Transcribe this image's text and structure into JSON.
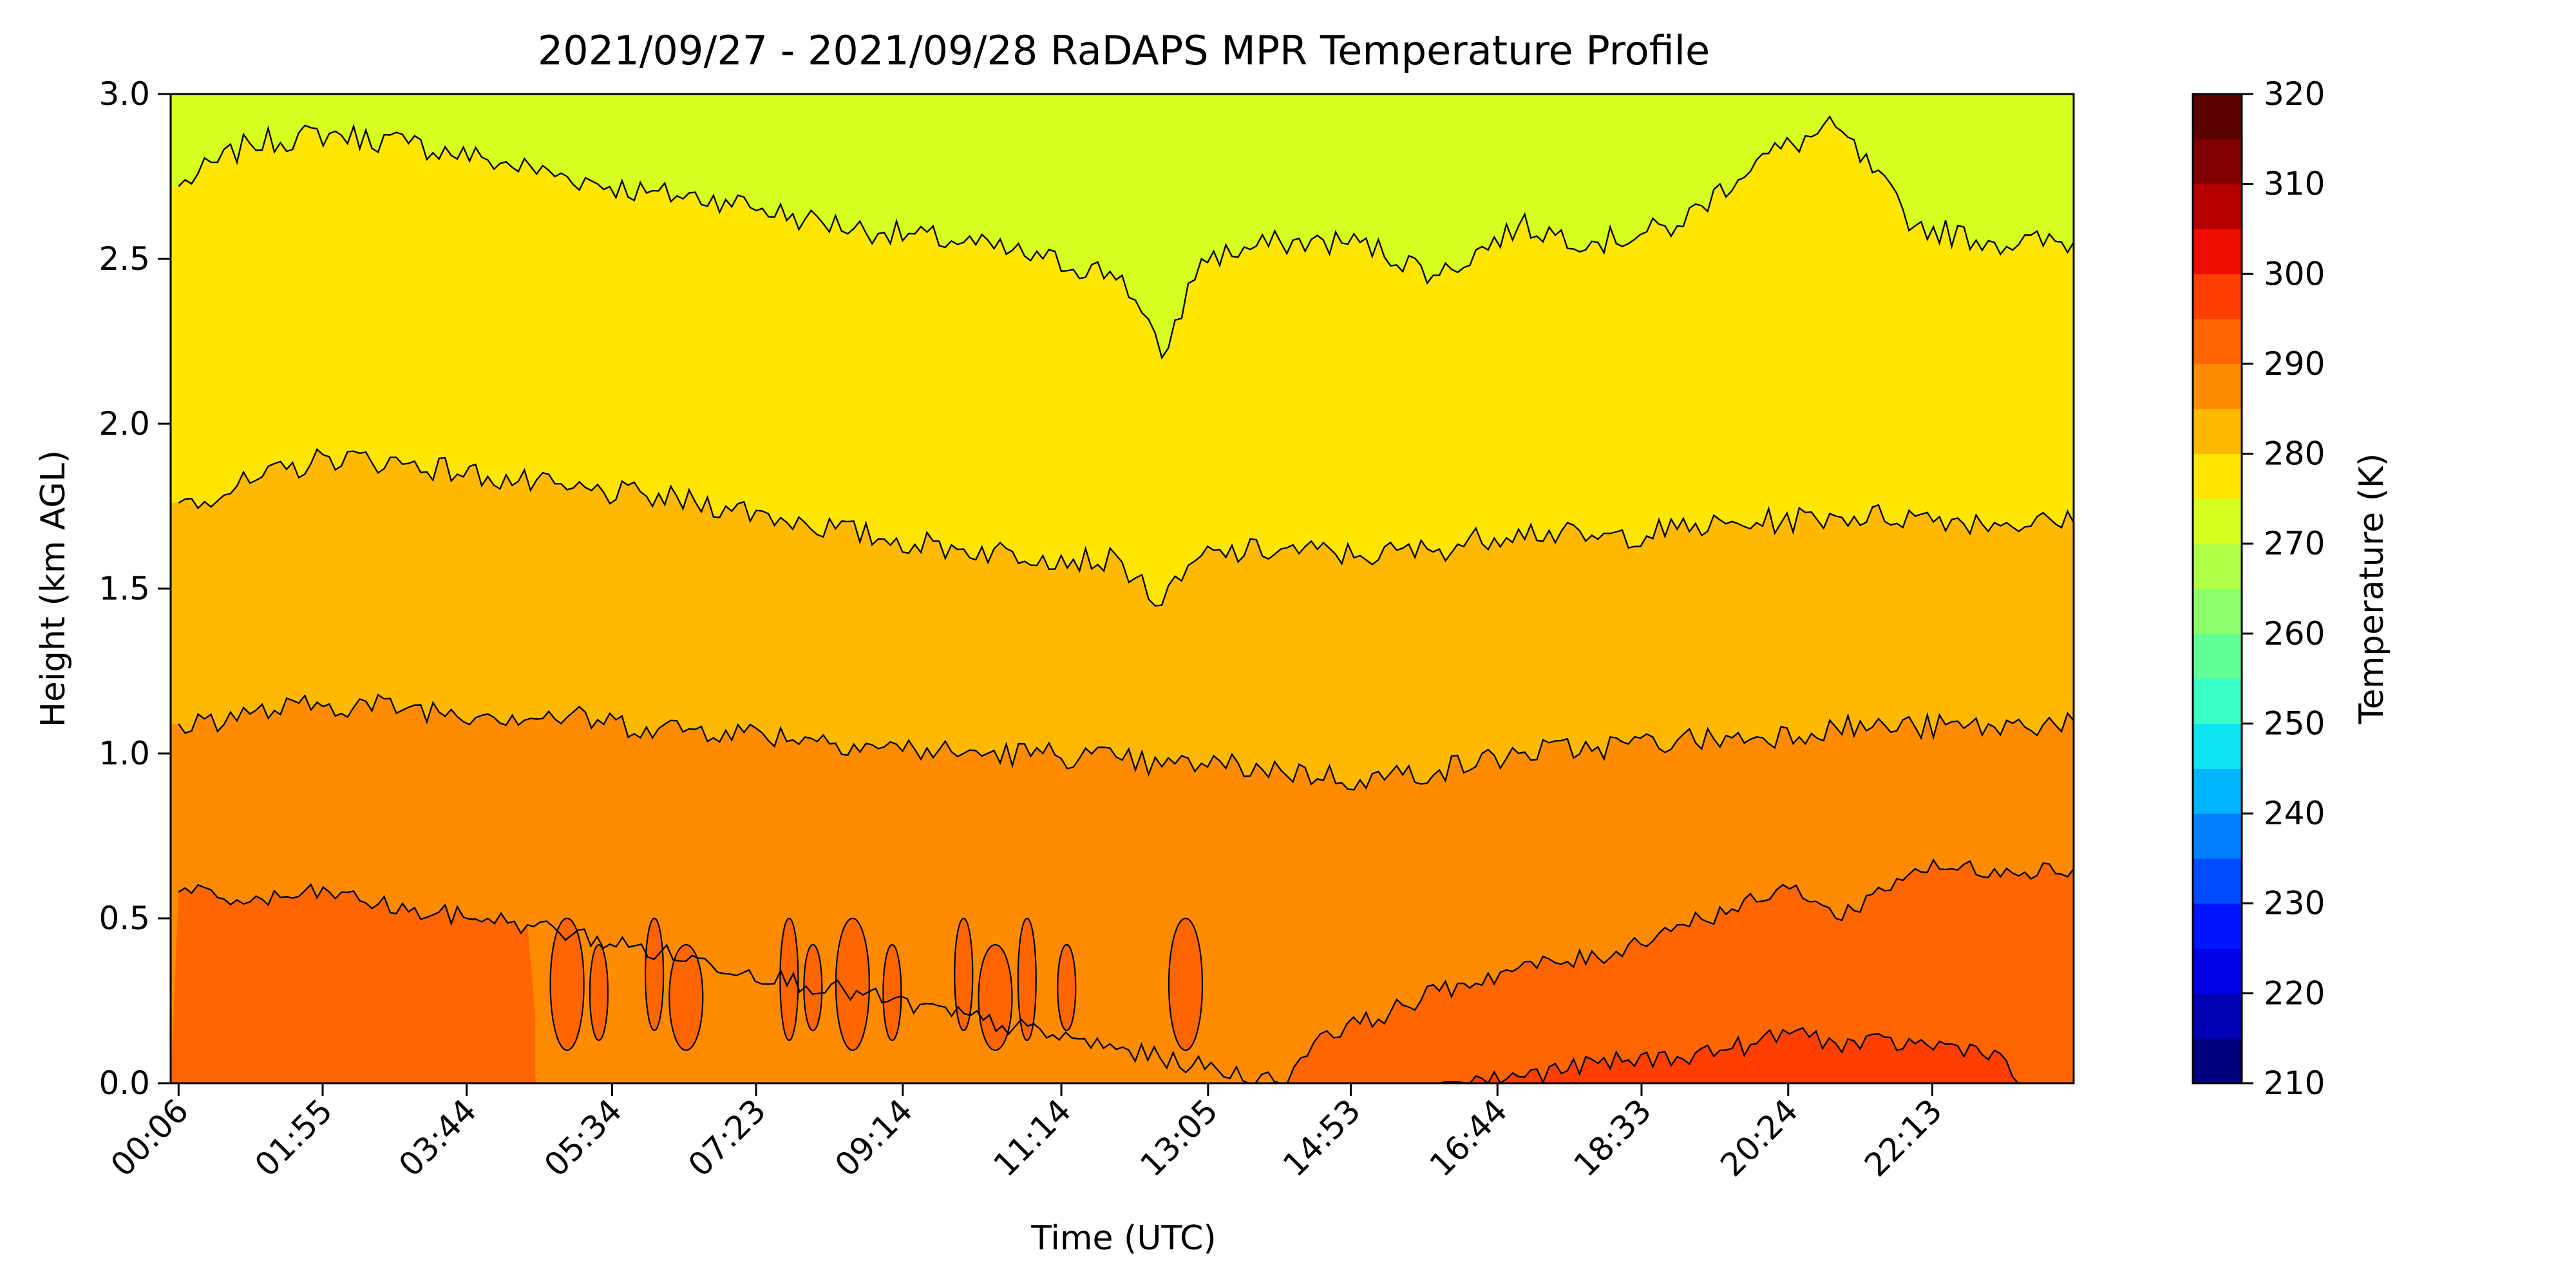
{
  "chart_data": {
    "type": "heatmap",
    "title": "2021/09/27 - 2021/09/28 RaDAPS MPR Temperature Profile",
    "xlabel": "Time (UTC)",
    "ylabel": "Height (km AGL)",
    "x_tick_labels": [
      "00:06",
      "01:55",
      "03:44",
      "05:34",
      "07:23",
      "09:14",
      "11:14",
      "13:05",
      "14:53",
      "16:44",
      "18:33",
      "20:24",
      "22:13"
    ],
    "y_ticks": [
      0.0,
      0.5,
      1.0,
      1.5,
      2.0,
      2.5,
      3.0
    ],
    "y_tick_labels": [
      "0.0",
      "0.5",
      "1.0",
      "1.5",
      "2.0",
      "2.5",
      "3.0"
    ],
    "ylim": [
      0,
      3.0
    ],
    "grid": false,
    "colorbar": {
      "label": "Temperature (K)",
      "range": [
        210,
        320
      ],
      "ticks": [
        210,
        220,
        230,
        240,
        250,
        260,
        270,
        280,
        290,
        300,
        310,
        320
      ],
      "tick_labels": [
        "210",
        "220",
        "230",
        "240",
        "250",
        "260",
        "270",
        "280",
        "290",
        "300",
        "310",
        "320"
      ],
      "levels": [
        210,
        215,
        220,
        225,
        230,
        235,
        240,
        245,
        250,
        255,
        260,
        265,
        270,
        275,
        280,
        285,
        290,
        295,
        300,
        305,
        310,
        315,
        320
      ],
      "colors": [
        "#00007f",
        "#0000b2",
        "#0000e8",
        "#0014ff",
        "#004cff",
        "#0080ff",
        "#00b4ff",
        "#0de5f1",
        "#3affc4",
        "#60ff97",
        "#8dff6a",
        "#b1ff46",
        "#d7ff1f",
        "#ffe600",
        "#ffb900",
        "#ff8c00",
        "#ff6600",
        "#ff3f00",
        "#ee0c00",
        "#b80000",
        "#7f0000",
        "#5c0000"
      ],
      "colors_note": "colormap: jet"
    },
    "contour_bands": [
      {
        "level_range": [
          275,
          280
        ],
        "color": "#d7ff1f"
      },
      {
        "level_range": [
          280,
          285
        ],
        "color": "#ffe600"
      },
      {
        "level_range": [
          285,
          290
        ],
        "color": "#ffb900"
      },
      {
        "level_range": [
          290,
          295
        ],
        "color": "#ff8c00"
      },
      {
        "level_range": [
          295,
          300
        ],
        "color": "#ff6600"
      },
      {
        "level_range": [
          300,
          305
        ],
        "color": "#ff3f00"
      }
    ],
    "contour_lines_km": [
      {
        "name": "280 K isoline",
        "x_hours": [
          0.1,
          1,
          2,
          3,
          4,
          5,
          6,
          7,
          8,
          9,
          10,
          11,
          12,
          12.5,
          13,
          14,
          15,
          16,
          17,
          18,
          19,
          20,
          21,
          22,
          23,
          24
        ],
        "heights": [
          2.72,
          2.85,
          2.88,
          2.85,
          2.8,
          2.75,
          2.7,
          2.68,
          2.62,
          2.58,
          2.55,
          2.5,
          2.45,
          2.2,
          2.5,
          2.55,
          2.55,
          2.45,
          2.6,
          2.55,
          2.6,
          2.8,
          2.9,
          2.6,
          2.55,
          2.55
        ]
      },
      {
        "name": "285 K isoline",
        "x_hours": [
          0.1,
          1,
          2,
          3,
          4,
          5,
          6,
          7,
          8,
          9,
          10,
          11,
          12,
          12.5,
          13,
          14,
          15,
          16,
          17,
          18,
          19,
          20,
          21,
          22,
          23,
          24
        ],
        "heights": [
          1.76,
          1.82,
          1.9,
          1.88,
          1.84,
          1.8,
          1.78,
          1.75,
          1.7,
          1.65,
          1.62,
          1.6,
          1.58,
          1.45,
          1.6,
          1.62,
          1.6,
          1.62,
          1.68,
          1.65,
          1.68,
          1.7,
          1.72,
          1.72,
          1.7,
          1.7
        ]
      },
      {
        "name": "290 K isoline",
        "x_hours": [
          0.1,
          1,
          2,
          3,
          4,
          5,
          6,
          7,
          8,
          9,
          10,
          11,
          12,
          12.5,
          13,
          14,
          15,
          16,
          17,
          18,
          19,
          20,
          21,
          22,
          23,
          24
        ],
        "heights": [
          1.09,
          1.12,
          1.15,
          1.14,
          1.12,
          1.11,
          1.08,
          1.07,
          1.05,
          1.02,
          1.0,
          1.0,
          0.98,
          0.96,
          0.97,
          0.95,
          0.92,
          0.95,
          1.0,
          1.02,
          1.04,
          1.05,
          1.08,
          1.08,
          1.08,
          1.1
        ]
      },
      {
        "name": "295 K isoline",
        "x_hours": [
          0.1,
          1,
          2,
          3,
          4,
          4.5,
          14.0,
          14.5,
          15,
          16,
          17,
          18,
          19,
          20,
          20.5,
          21,
          22,
          23,
          24
        ],
        "heights": [
          0.58,
          0.55,
          0.58,
          0.52,
          0.5,
          0.48,
          0.0,
          0.15,
          0.18,
          0.28,
          0.35,
          0.38,
          0.48,
          0.55,
          0.6,
          0.5,
          0.65,
          0.65,
          0.65
        ]
      },
      {
        "name": "300 K isoline",
        "x_hours": [
          16.0,
          17,
          18,
          19,
          20,
          20.5,
          21,
          22,
          23,
          23.3
        ],
        "heights": [
          0.0,
          0.02,
          0.06,
          0.08,
          0.12,
          0.16,
          0.12,
          0.12,
          0.1,
          0.0
        ]
      }
    ]
  }
}
